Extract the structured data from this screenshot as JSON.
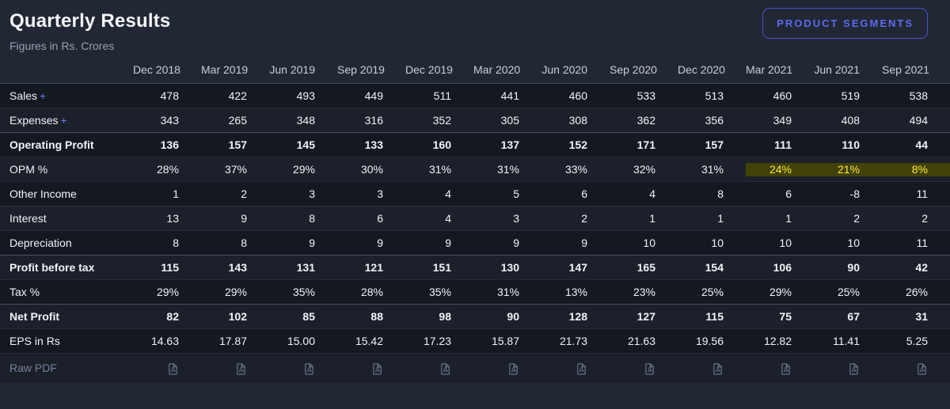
{
  "page": {
    "title": "Quarterly Results",
    "subtitle": "Figures in Rs. Crores"
  },
  "actions": {
    "product_segments_label": "PRODUCT SEGMENTS"
  },
  "colors": {
    "accent": "#5b6cf0",
    "link": "#6a79ee",
    "highlight_text": "#ffe737",
    "highlight_band": "#414208",
    "page_bg": "#222734",
    "stripe_dark": "#141820",
    "stripe_light": "#1b202b"
  },
  "icons": {
    "pdf": "pdf-file-icon"
  },
  "table": {
    "columns": [
      "Dec 2018",
      "Mar 2019",
      "Jun 2019",
      "Sep 2019",
      "Dec 2019",
      "Mar 2020",
      "Jun 2020",
      "Sep 2020",
      "Dec 2020",
      "Mar 2021",
      "Jun 2021",
      "Sep 2021"
    ],
    "rows": [
      {
        "label": "Sales",
        "suffix": "+",
        "bold": false,
        "strong": false,
        "values": [
          "478",
          "422",
          "493",
          "449",
          "511",
          "441",
          "460",
          "533",
          "513",
          "460",
          "519",
          "538"
        ]
      },
      {
        "label": "Expenses",
        "suffix": "+",
        "bold": false,
        "strong": false,
        "values": [
          "343",
          "265",
          "348",
          "316",
          "352",
          "305",
          "308",
          "362",
          "356",
          "349",
          "408",
          "494"
        ]
      },
      {
        "label": "Operating Profit",
        "bold": true,
        "strong": true,
        "values": [
          "136",
          "157",
          "145",
          "133",
          "160",
          "137",
          "152",
          "171",
          "157",
          "111",
          "110",
          "44"
        ]
      },
      {
        "label": "OPM %",
        "bold": false,
        "strong": false,
        "values": [
          "28%",
          "37%",
          "29%",
          "30%",
          "31%",
          "31%",
          "33%",
          "32%",
          "31%",
          "24%",
          "21%",
          "8%"
        ],
        "highlight_cols": [
          9,
          10,
          11
        ]
      },
      {
        "label": "Other Income",
        "bold": false,
        "strong": false,
        "values": [
          "1",
          "2",
          "3",
          "3",
          "4",
          "5",
          "6",
          "4",
          "8",
          "6",
          "-8",
          "11"
        ]
      },
      {
        "label": "Interest",
        "bold": false,
        "strong": false,
        "values": [
          "13",
          "9",
          "8",
          "6",
          "4",
          "3",
          "2",
          "1",
          "1",
          "1",
          "2",
          "2"
        ]
      },
      {
        "label": "Depreciation",
        "bold": false,
        "strong": false,
        "values": [
          "8",
          "8",
          "9",
          "9",
          "9",
          "9",
          "9",
          "10",
          "10",
          "10",
          "10",
          "11"
        ]
      },
      {
        "label": "Profit before tax",
        "bold": true,
        "strong": true,
        "values": [
          "115",
          "143",
          "131",
          "121",
          "151",
          "130",
          "147",
          "165",
          "154",
          "106",
          "90",
          "42"
        ]
      },
      {
        "label": "Tax %",
        "bold": false,
        "strong": false,
        "values": [
          "29%",
          "29%",
          "35%",
          "28%",
          "35%",
          "31%",
          "13%",
          "23%",
          "25%",
          "29%",
          "25%",
          "26%"
        ]
      },
      {
        "label": "Net Profit",
        "bold": true,
        "strong": true,
        "values": [
          "82",
          "102",
          "85",
          "88",
          "98",
          "90",
          "128",
          "127",
          "115",
          "75",
          "67",
          "31"
        ]
      },
      {
        "label": "EPS in Rs",
        "bold": false,
        "strong": false,
        "values": [
          "14.63",
          "17.87",
          "15.00",
          "15.42",
          "17.23",
          "15.87",
          "21.73",
          "21.63",
          "19.56",
          "12.82",
          "11.41",
          "5.25"
        ]
      },
      {
        "label": "Raw PDF",
        "bold": false,
        "strong": false,
        "muted": true,
        "type": "pdf",
        "values": [
          "pdf",
          "pdf",
          "pdf",
          "pdf",
          "pdf",
          "pdf",
          "pdf",
          "pdf",
          "pdf",
          "pdf",
          "pdf",
          "pdf"
        ]
      }
    ]
  }
}
